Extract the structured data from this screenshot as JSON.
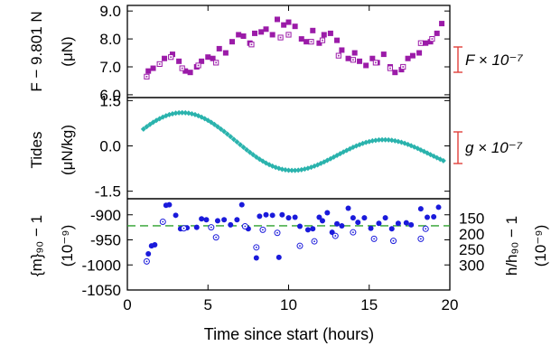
{
  "chart_data": [
    {
      "type": "scatter",
      "panel": "top",
      "ylabel_line1": "F − 9.801 N",
      "ylabel_line2": "(μN)",
      "ylim": [
        5.9,
        9.2
      ],
      "yticks": [
        "9.0",
        "8.0",
        "7.0",
        "6.0"
      ],
      "ytick_values": [
        9.0,
        8.0,
        7.0,
        6.0
      ],
      "scale_bar_label": "F × 10⁻⁷",
      "scale_bar_color": "#e0403a",
      "series": [
        {
          "marker": "filled-square",
          "color": "#9b1ba8",
          "x": [
            1.3,
            1.6,
            2.3,
            2.8,
            3.2,
            3.6,
            3.9,
            4.3,
            4.6,
            5.0,
            5.3,
            5.7,
            6.1,
            6.5,
            6.9,
            7.2,
            7.6,
            7.9,
            8.3,
            8.6,
            9.0,
            9.3,
            9.7,
            10.0,
            10.4,
            10.8,
            11.1,
            11.5,
            11.9,
            12.2,
            12.6,
            13.0,
            13.3,
            13.7,
            14.1,
            14.4,
            14.8,
            15.2,
            15.5,
            15.9,
            16.3,
            16.6,
            17.0,
            17.4,
            17.7,
            18.1,
            18.5,
            18.8,
            19.2,
            19.5
          ],
          "y": [
            6.85,
            6.95,
            7.3,
            7.45,
            7.2,
            6.85,
            6.8,
            7.0,
            7.2,
            7.35,
            7.3,
            7.65,
            7.5,
            7.9,
            8.15,
            8.1,
            7.85,
            8.2,
            8.25,
            8.35,
            8.15,
            8.7,
            8.5,
            8.6,
            8.45,
            8.0,
            7.9,
            8.3,
            7.85,
            8.15,
            8.2,
            7.95,
            7.6,
            7.3,
            7.5,
            7.2,
            7.05,
            7.3,
            7.15,
            7.45,
            7.0,
            6.8,
            6.9,
            7.3,
            7.4,
            7.5,
            7.85,
            7.9,
            8.2,
            8.55
          ]
        },
        {
          "marker": "open-square",
          "color": "#9b1ba8",
          "x": [
            1.2,
            2.0,
            2.7,
            3.4,
            4.4,
            5.5,
            7.7,
            9.5,
            10.0,
            11.4,
            12.1,
            13.1,
            14.0,
            15.4,
            16.3,
            17.1,
            18.2,
            18.9
          ],
          "y": [
            6.65,
            7.1,
            7.35,
            6.95,
            7.05,
            7.15,
            7.8,
            8.05,
            8.15,
            7.9,
            7.95,
            7.4,
            7.25,
            7.15,
            6.95,
            7.0,
            7.85,
            8.0
          ]
        }
      ]
    },
    {
      "type": "scatter",
      "panel": "middle",
      "ylabel_line1": "Tides",
      "ylabel_line2": "(μN/kg)",
      "ylim": [
        -1.75,
        1.6
      ],
      "yticks": [
        "1.5",
        "0.0",
        "-1.5"
      ],
      "ytick_values": [
        1.5,
        0.0,
        -1.5
      ],
      "scale_bar_label": "g × 10⁻⁷",
      "scale_bar_color": "#e0403a",
      "series": [
        {
          "name": "tide",
          "marker": "diamond",
          "color": "#2ab3ad",
          "model": {
            "offset": -0.05,
            "amp1": 0.7,
            "period1": 12.42,
            "phase1": 3.4,
            "amp2": 0.45,
            "period2": 24.0,
            "phase2": 3.4
          },
          "x_range": [
            1.0,
            19.6
          ],
          "x_step": 0.2
        }
      ]
    },
    {
      "type": "scatter",
      "panel": "bottom",
      "ylabel_line1": "{m}₉₀ − 1",
      "ylabel_line2": "(10⁻⁹)",
      "ylabel_right_line1": "h/h₉₀ − 1",
      "ylabel_right_line2": "(10⁻⁹)",
      "ylim": [
        -1050,
        -868
      ],
      "yticks": [
        "-900",
        "-950",
        "-1000",
        "-1050"
      ],
      "ytick_values": [
        -900,
        -950,
        -1000,
        -1050
      ],
      "right_ticks": [
        "150",
        "200",
        "250",
        "300"
      ],
      "right_tick_values": [
        -907,
        -938,
        -969,
        -1000
      ],
      "reference_line": {
        "value": -922,
        "style": "dashed",
        "color": "#2ca02c"
      },
      "series": [
        {
          "marker": "filled-circle",
          "color": "#1a1adb",
          "x": [
            1.3,
            1.5,
            1.7,
            2.4,
            2.6,
            3.0,
            3.3,
            3.7,
            4.3,
            4.6,
            4.9,
            5.6,
            6.0,
            6.4,
            6.8,
            7.1,
            7.5,
            8.0,
            8.2,
            8.6,
            9.0,
            9.4,
            9.6,
            10.0,
            10.4,
            10.7,
            11.2,
            11.5,
            11.9,
            12.1,
            12.4,
            12.7,
            13.0,
            13.3,
            13.7,
            14.0,
            14.3,
            14.7,
            15.1,
            15.6,
            16.0,
            16.4,
            16.8,
            17.3,
            17.6,
            18.2,
            18.6,
            19.0,
            19.3
          ],
          "y": [
            -978,
            -962,
            -960,
            -881,
            -880,
            -901,
            -928,
            -926,
            -925,
            -908,
            -910,
            -912,
            -910,
            -920,
            -910,
            -880,
            -928,
            -986,
            -903,
            -900,
            -901,
            -985,
            -900,
            -906,
            -905,
            -923,
            -930,
            -928,
            -905,
            -912,
            -896,
            -935,
            -918,
            -922,
            -887,
            -906,
            -915,
            -906,
            -927,
            -917,
            -906,
            -928,
            -917,
            -916,
            -920,
            -888,
            -905,
            -904,
            -885
          ]
        },
        {
          "marker": "open-circle",
          "color": "#1a1adb",
          "x": [
            1.2,
            2.2,
            3.5,
            5.2,
            5.5,
            7.3,
            8.0,
            8.4,
            9.3,
            10.7,
            11.6,
            12.9,
            14.0,
            15.3,
            16.5,
            18.2,
            18.5
          ],
          "y": [
            -993,
            -914,
            -927,
            -925,
            -945,
            -923,
            -965,
            -930,
            -936,
            -962,
            -953,
            -942,
            -935,
            -948,
            -952,
            -948,
            -928
          ]
        }
      ]
    }
  ],
  "xaxis": {
    "label": "Time since start (hours)",
    "lim": [
      0,
      20
    ],
    "ticks": [
      "0",
      "5",
      "10",
      "15",
      "20"
    ],
    "tick_values": [
      0,
      5,
      10,
      15,
      20
    ]
  }
}
